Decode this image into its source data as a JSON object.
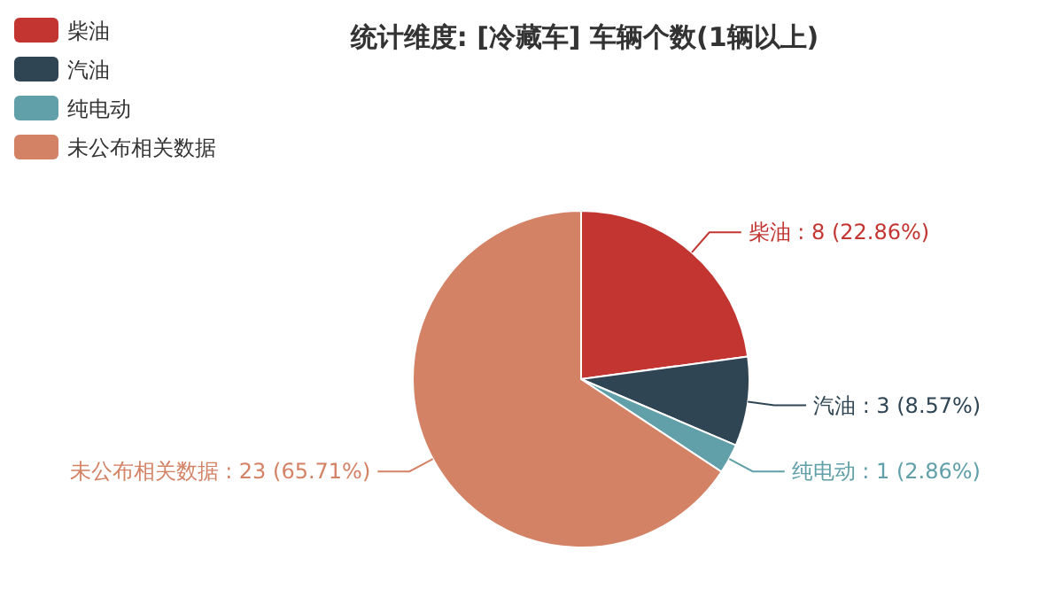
{
  "chart_data": {
    "type": "pie",
    "title": "统计维度: [冷藏车] 车辆个数(1辆以上)",
    "categories": [
      "柴油",
      "汽油",
      "纯电动",
      "未公布相关数据"
    ],
    "values": [
      8,
      3,
      1,
      23
    ],
    "value_labels": [
      "柴油 : 8 (22.86%)",
      "汽油 : 3 (8.57%)",
      "纯电动 : 1 (2.86%)",
      "未公布相关数据 : 23 (65.71%)"
    ],
    "colors": [
      "#c23531",
      "#2f4554",
      "#61a0a8",
      "#d48265"
    ],
    "legend": "top left"
  }
}
